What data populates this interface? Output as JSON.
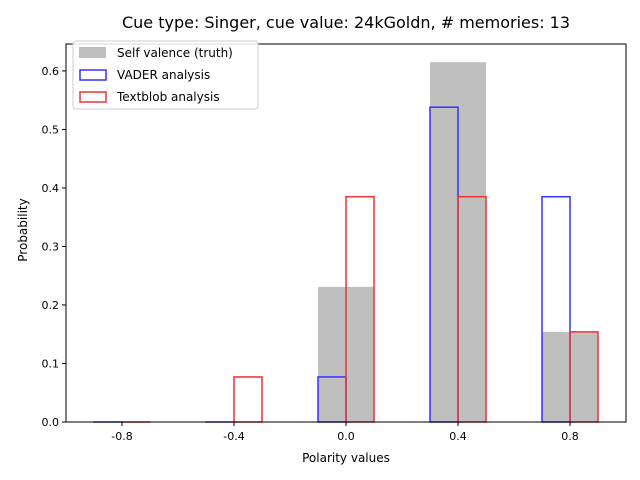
{
  "chart_data": {
    "type": "bar",
    "title": "Cue type: Singer, cue value: 24kGoldn, # memories: 13",
    "xlabel": "Polarity values",
    "ylabel": "Probability",
    "categories": [
      -0.8,
      -0.4,
      0.0,
      0.4,
      0.8
    ],
    "xticks": [
      "-0.8",
      "-0.4",
      "0.0",
      "0.4",
      "0.8"
    ],
    "yticks": [
      "0.0",
      "0.1",
      "0.2",
      "0.3",
      "0.4",
      "0.5",
      "0.6"
    ],
    "xlim": [
      -1.0,
      1.0
    ],
    "ylim": [
      0,
      0.646
    ],
    "legend_position": "top-left",
    "series": [
      {
        "name": "Self valence (truth)",
        "style": "filled",
        "color": "#bfbfbf",
        "values": [
          0.0,
          0.0,
          0.231,
          0.615,
          0.154
        ]
      },
      {
        "name": "VADER analysis",
        "style": "outline",
        "color": "#3333ff",
        "values": [
          0.0,
          0.0,
          0.077,
          0.538,
          0.385
        ]
      },
      {
        "name": "Textblob analysis",
        "style": "outline",
        "color": "#ee3333",
        "values": [
          0.0,
          0.077,
          0.385,
          0.385,
          0.154
        ]
      }
    ]
  }
}
